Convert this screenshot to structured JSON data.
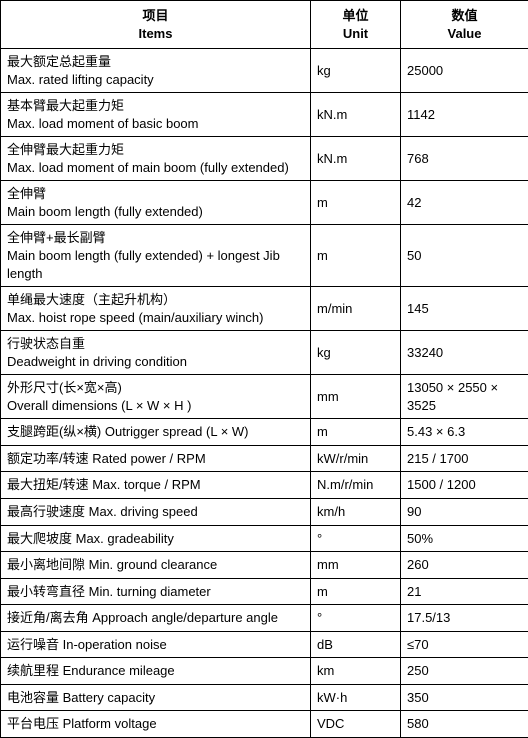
{
  "table": {
    "headers": {
      "items_zh": "项目",
      "items_en": "Items",
      "unit_zh": "单位",
      "unit_en": "Unit",
      "value_zh": "数值",
      "value_en": "Value"
    },
    "rows": [
      {
        "zh": "最大额定总起重量",
        "en": "Max. rated lifting capacity",
        "unit": "kg",
        "value": "25000"
      },
      {
        "zh": "基本臂最大起重力矩",
        "en": "Max. load moment of basic boom",
        "unit": "kN.m",
        "value": "1142"
      },
      {
        "zh": "全伸臂最大起重力矩",
        "en": "Max. load moment of main boom (fully extended)",
        "unit": "kN.m",
        "value": "768"
      },
      {
        "zh": "全伸臂",
        "en": "Main boom length (fully extended)",
        "unit": "m",
        "value": "42"
      },
      {
        "zh": "全伸臂+最长副臂",
        "en": "Main boom length (fully extended) + longest Jib length",
        "unit": "m",
        "value": "50"
      },
      {
        "zh": "单绳最大速度（主起升机构）",
        "en": "Max. hoist rope speed (main/auxiliary winch)",
        "unit": "m/min",
        "value": "145"
      },
      {
        "zh": "行驶状态自重",
        "en": "Deadweight in driving condition",
        "unit": "kg",
        "value": "33240"
      },
      {
        "zh": "外形尺寸(长×宽×高)",
        "en": "Overall dimensions (L × W × H )",
        "unit": "mm",
        "value": "13050 × 2550 × 3525"
      },
      {
        "zh": "支腿跨距(纵×横) Outrigger spread (L × W)",
        "en": "",
        "unit": "m",
        "value": "5.43 × 6.3"
      },
      {
        "zh": "额定功率/转速  Rated power / RPM",
        "en": "",
        "unit": "kW/r/min",
        "value": "215 / 1700"
      },
      {
        "zh": "最大扭矩/转速  Max. torque / RPM",
        "en": "",
        "unit": "N.m/r/min",
        "value": "1500 / 1200"
      },
      {
        "zh": "最高行驶速度  Max. driving speed",
        "en": "",
        "unit": "km/h",
        "value": "90"
      },
      {
        "zh": "最大爬坡度  Max. gradeability",
        "en": "",
        "unit": "°",
        "value": "50%"
      },
      {
        "zh": "最小离地间隙  Min. ground clearance",
        "en": "",
        "unit": "mm",
        "value": "260"
      },
      {
        "zh": "最小转弯直径  Min. turning diameter",
        "en": "",
        "unit": "m",
        "value": "21"
      },
      {
        "zh": "接近角/离去角  Approach angle/departure angle",
        "en": "",
        "unit": "°",
        "value": "17.5/13"
      },
      {
        "zh": "运行噪音  In-operation noise",
        "en": "",
        "unit": "dB",
        "value": "≤70"
      },
      {
        "zh": "续航里程  Endurance mileage",
        "en": "",
        "unit": "km",
        "value": "250"
      },
      {
        "zh": "电池容量  Battery capacity",
        "en": "",
        "unit": "kW·h",
        "value": "350"
      },
      {
        "zh": "平台电压  Platform voltage",
        "en": "",
        "unit": "VDC",
        "value": "580"
      }
    ]
  },
  "style": {
    "border_color": "#000000",
    "background_color": "#ffffff",
    "text_color": "#000000",
    "font_size_pt": 10,
    "header_font_weight": "bold"
  }
}
